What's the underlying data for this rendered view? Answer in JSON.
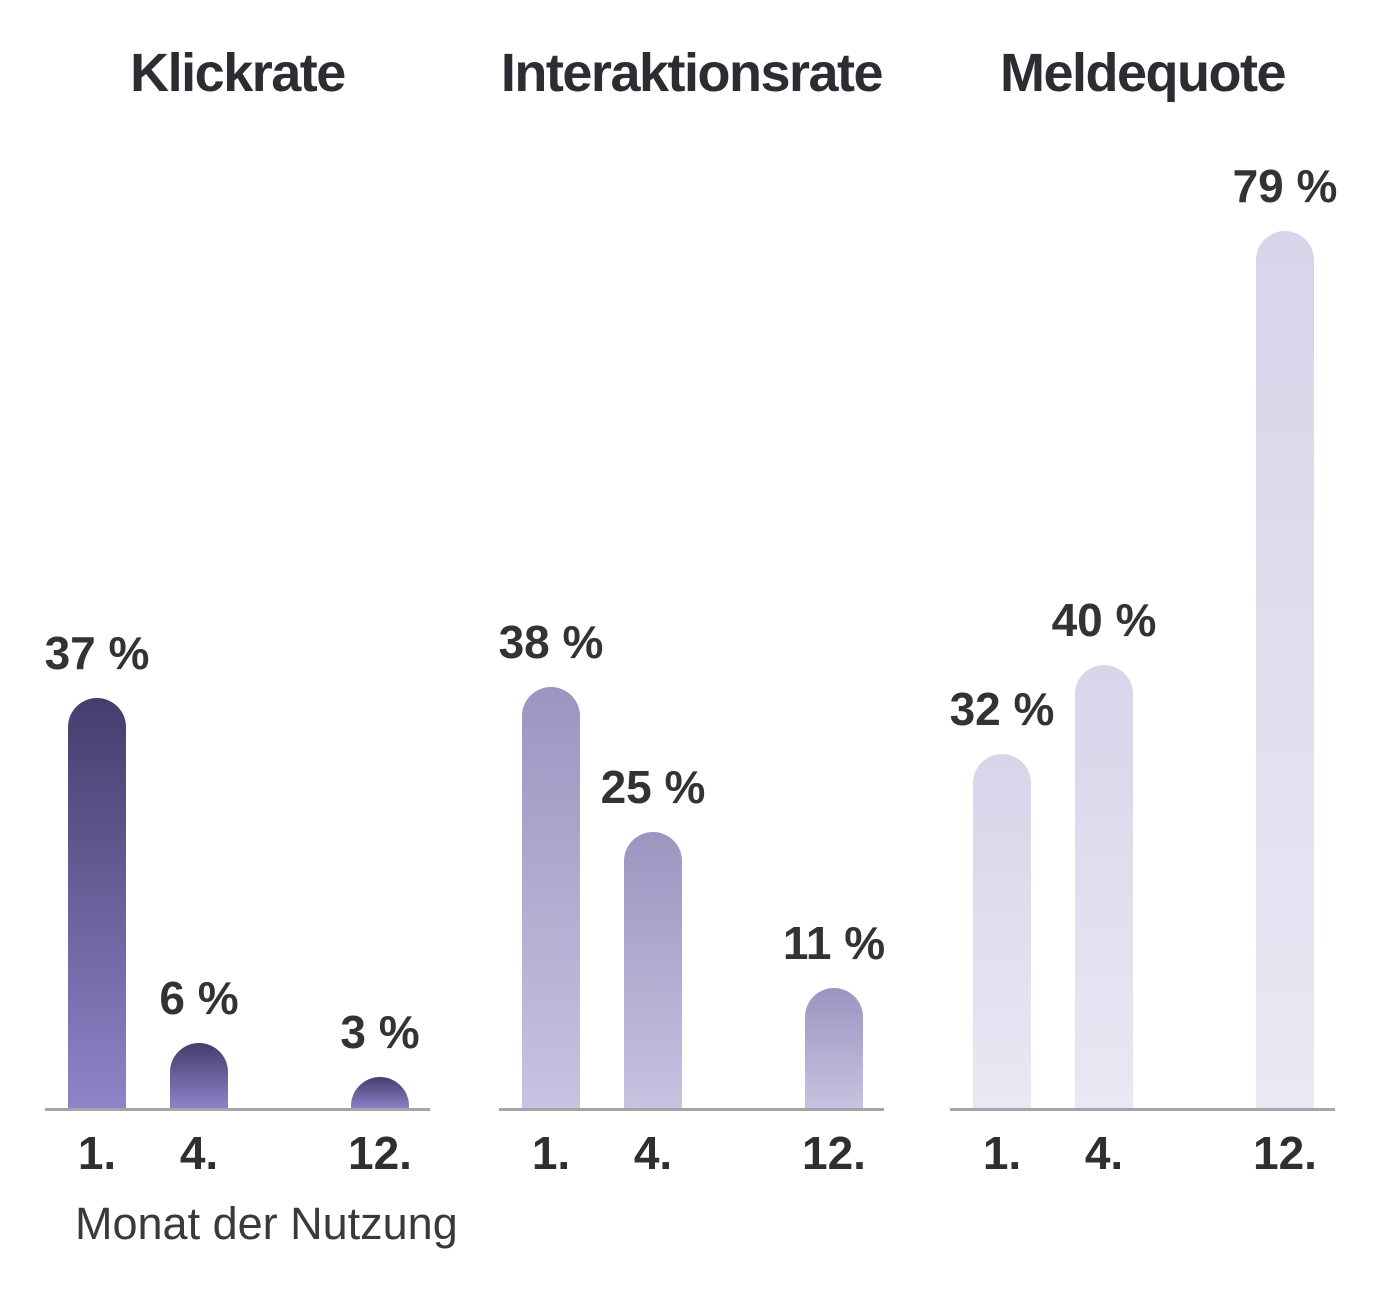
{
  "chart_data": [
    {
      "type": "bar",
      "title": "Klickrate",
      "categories": [
        "1.",
        "4.",
        "12."
      ],
      "values": [
        37,
        6,
        3
      ],
      "labels": [
        "37 %",
        "6 %",
        "3 %"
      ],
      "xlabel": "Monat der Nutzung",
      "ylabel": "",
      "ylim": [
        0,
        100
      ],
      "grid": false,
      "legend": "none",
      "bar_gradient_top": "#443e6d",
      "bar_gradient_bottom": "#8d85c9"
    },
    {
      "type": "bar",
      "title": "Interaktionsrate",
      "categories": [
        "1.",
        "4.",
        "12."
      ],
      "values": [
        38,
        25,
        11
      ],
      "labels": [
        "38 %",
        "25 %",
        "11 %"
      ],
      "xlabel": "",
      "ylabel": "",
      "ylim": [
        0,
        100
      ],
      "grid": false,
      "legend": "none",
      "bar_gradient_top": "#9b95c1",
      "bar_gradient_bottom": "#c8c3e1"
    },
    {
      "type": "bar",
      "title": "Meldequote",
      "categories": [
        "1.",
        "4.",
        "12."
      ],
      "values": [
        32,
        40,
        79
      ],
      "labels": [
        "32 %",
        "40 %",
        "79 %"
      ],
      "xlabel": "",
      "ylabel": "",
      "ylim": [
        0,
        100
      ],
      "grid": false,
      "legend": "none",
      "bar_gradient_top": "#d8d4ea",
      "bar_gradient_bottom": "#eae8f4"
    }
  ],
  "xlabel": "Monat der Nutzung",
  "colors": {
    "title_text": "#2c2c33",
    "label_text": "#333333",
    "tick_text": "#2f2f2f",
    "axis_line": "#a6a4a8",
    "background": "#ffffff"
  }
}
